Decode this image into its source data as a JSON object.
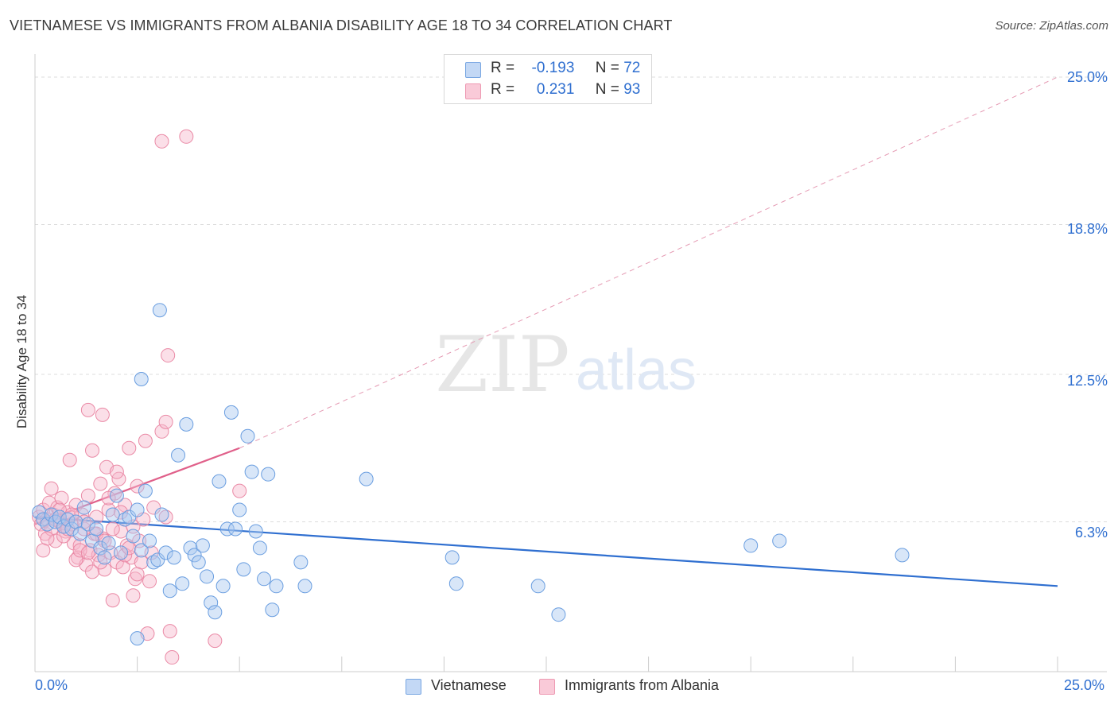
{
  "header": {
    "title": "VIETNAMESE VS IMMIGRANTS FROM ALBANIA DISABILITY AGE 18 TO 34 CORRELATION CHART",
    "source": "Source: ZipAtlas.com"
  },
  "watermark": {
    "zip": "ZIP",
    "atlas": "atlas"
  },
  "legend": {
    "r_label": "R =",
    "n_label": "N =",
    "series": [
      {
        "name": "Vietnamese",
        "r": "-0.193",
        "n": "72",
        "color": "#a9c8f0",
        "stroke": "#6a9ee0"
      },
      {
        "name": "Immigrants from Albania",
        "r": "0.231",
        "n": "93",
        "color": "#f7b9cb",
        "stroke": "#ea8aa6"
      }
    ]
  },
  "chart_data": {
    "type": "scatter",
    "title": "VIETNAMESE VS IMMIGRANTS FROM ALBANIA DISABILITY AGE 18 TO 34 CORRELATION CHART",
    "xlabel": "",
    "ylabel": "Disability Age 18 to 34",
    "xlim": [
      0,
      25
    ],
    "ylim": [
      0,
      25
    ],
    "x_tick_labels": [
      "0.0%",
      "25.0%"
    ],
    "y_tick_labels": [
      "25.0%",
      "18.8%",
      "12.5%",
      "6.3%"
    ],
    "y_tick_values": [
      25.0,
      18.8,
      12.5,
      6.3
    ],
    "series": [
      {
        "name": "Vietnamese",
        "color": "#6a9ee0",
        "trend": {
          "x": [
            0,
            25
          ],
          "y": [
            6.5,
            3.6
          ],
          "style": "solid",
          "color": "#2f6fd0"
        },
        "points": [
          [
            0.1,
            6.7
          ],
          [
            0.2,
            6.4
          ],
          [
            0.3,
            6.2
          ],
          [
            0.4,
            6.6
          ],
          [
            0.5,
            6.3
          ],
          [
            0.6,
            6.5
          ],
          [
            0.7,
            6.1
          ],
          [
            0.8,
            6.4
          ],
          [
            0.9,
            6.0
          ],
          [
            1.0,
            6.3
          ],
          [
            1.1,
            5.8
          ],
          [
            1.2,
            6.9
          ],
          [
            1.3,
            6.2
          ],
          [
            1.4,
            5.5
          ],
          [
            1.5,
            6.0
          ],
          [
            1.6,
            5.2
          ],
          [
            1.7,
            4.8
          ],
          [
            1.8,
            5.4
          ],
          [
            1.9,
            6.6
          ],
          [
            2.0,
            7.4
          ],
          [
            2.1,
            5.0
          ],
          [
            2.2,
            6.4
          ],
          [
            2.3,
            6.5
          ],
          [
            2.4,
            5.7
          ],
          [
            2.5,
            6.8
          ],
          [
            2.6,
            5.1
          ],
          [
            2.7,
            7.6
          ],
          [
            2.8,
            5.5
          ],
          [
            2.9,
            4.6
          ],
          [
            3.0,
            4.7
          ],
          [
            3.1,
            6.6
          ],
          [
            3.2,
            5.0
          ],
          [
            3.3,
            3.4
          ],
          [
            3.4,
            4.8
          ],
          [
            3.5,
            9.1
          ],
          [
            3.6,
            3.7
          ],
          [
            3.7,
            10.4
          ],
          [
            3.8,
            5.2
          ],
          [
            3.9,
            4.9
          ],
          [
            4.0,
            4.6
          ],
          [
            4.1,
            5.3
          ],
          [
            4.2,
            4.0
          ],
          [
            4.3,
            2.9
          ],
          [
            4.4,
            2.5
          ],
          [
            4.5,
            8.0
          ],
          [
            4.6,
            3.6
          ],
          [
            4.7,
            6.0
          ],
          [
            4.8,
            10.9
          ],
          [
            4.9,
            6.0
          ],
          [
            5.0,
            6.8
          ],
          [
            5.1,
            4.3
          ],
          [
            5.2,
            9.9
          ],
          [
            5.3,
            8.4
          ],
          [
            5.4,
            5.9
          ],
          [
            5.5,
            5.2
          ],
          [
            5.6,
            3.9
          ],
          [
            5.7,
            8.3
          ],
          [
            5.8,
            2.6
          ],
          [
            5.9,
            3.6
          ],
          [
            6.5,
            4.6
          ],
          [
            6.6,
            3.6
          ],
          [
            8.1,
            8.1
          ],
          [
            10.2,
            4.8
          ],
          [
            10.3,
            3.7
          ],
          [
            12.3,
            3.6
          ],
          [
            12.8,
            2.4
          ],
          [
            17.5,
            5.3
          ],
          [
            18.2,
            5.5
          ],
          [
            21.2,
            4.9
          ],
          [
            3.05,
            15.2
          ],
          [
            2.6,
            12.3
          ],
          [
            2.5,
            1.4
          ]
        ]
      },
      {
        "name": "Immigrants from Albania",
        "color": "#ea8aa6",
        "trend": {
          "x": [
            0,
            5.0
          ],
          "y": [
            6.2,
            9.4
          ],
          "style": "solid",
          "color": "#e0608a",
          "extension": {
            "x": [
              5.0,
              25
            ],
            "y": [
              9.4,
              25.0
            ],
            "style": "dashed"
          }
        },
        "points": [
          [
            0.1,
            6.5
          ],
          [
            0.15,
            6.2
          ],
          [
            0.2,
            6.8
          ],
          [
            0.25,
            5.8
          ],
          [
            0.3,
            6.4
          ],
          [
            0.35,
            7.1
          ],
          [
            0.4,
            6.0
          ],
          [
            0.45,
            6.6
          ],
          [
            0.5,
            5.5
          ],
          [
            0.55,
            6.9
          ],
          [
            0.6,
            6.3
          ],
          [
            0.65,
            7.3
          ],
          [
            0.7,
            6.1
          ],
          [
            0.75,
            5.9
          ],
          [
            0.8,
            6.7
          ],
          [
            0.85,
            8.9
          ],
          [
            0.9,
            6.2
          ],
          [
            0.95,
            5.4
          ],
          [
            1.0,
            7.0
          ],
          [
            1.05,
            4.8
          ],
          [
            1.1,
            5.3
          ],
          [
            1.15,
            6.6
          ],
          [
            1.2,
            6.0
          ],
          [
            1.25,
            4.5
          ],
          [
            1.3,
            7.4
          ],
          [
            1.35,
            5.1
          ],
          [
            1.4,
            9.3
          ],
          [
            1.45,
            5.8
          ],
          [
            1.5,
            6.5
          ],
          [
            1.55,
            4.9
          ],
          [
            1.6,
            7.9
          ],
          [
            1.65,
            5.6
          ],
          [
            1.7,
            4.3
          ],
          [
            1.75,
            8.6
          ],
          [
            1.8,
            6.8
          ],
          [
            1.85,
            5.0
          ],
          [
            1.9,
            3.0
          ],
          [
            1.95,
            7.5
          ],
          [
            2.0,
            4.6
          ],
          [
            2.05,
            8.1
          ],
          [
            2.1,
            5.9
          ],
          [
            2.15,
            4.4
          ],
          [
            2.2,
            7.0
          ],
          [
            2.25,
            5.3
          ],
          [
            2.3,
            9.4
          ],
          [
            2.35,
            4.8
          ],
          [
            2.4,
            6.1
          ],
          [
            2.45,
            3.9
          ],
          [
            2.5,
            7.8
          ],
          [
            2.55,
            5.5
          ],
          [
            2.6,
            4.6
          ],
          [
            2.65,
            6.4
          ],
          [
            2.7,
            9.7
          ],
          [
            2.75,
            1.6
          ],
          [
            2.8,
            3.8
          ],
          [
            2.85,
            5.0
          ],
          [
            2.9,
            6.9
          ],
          [
            3.1,
            10.1
          ],
          [
            3.2,
            10.5
          ],
          [
            3.25,
            13.3
          ],
          [
            3.3,
            1.7
          ],
          [
            3.35,
            0.6
          ],
          [
            3.1,
            22.3
          ],
          [
            3.7,
            22.5
          ],
          [
            0.2,
            5.1
          ],
          [
            0.3,
            5.6
          ],
          [
            0.4,
            7.7
          ],
          [
            0.5,
            6.4
          ],
          [
            0.6,
            6.8
          ],
          [
            0.7,
            5.7
          ],
          [
            0.8,
            6.0
          ],
          [
            0.9,
            6.6
          ],
          [
            1.0,
            4.7
          ],
          [
            1.1,
            5.1
          ],
          [
            1.2,
            6.3
          ],
          [
            1.3,
            5.0
          ],
          [
            1.4,
            4.2
          ],
          [
            1.5,
            5.8
          ],
          [
            1.6,
            4.6
          ],
          [
            1.7,
            5.5
          ],
          [
            1.8,
            7.3
          ],
          [
            1.9,
            6.0
          ],
          [
            2.0,
            8.4
          ],
          [
            2.1,
            6.7
          ],
          [
            2.2,
            4.9
          ],
          [
            2.3,
            5.2
          ],
          [
            2.4,
            3.2
          ],
          [
            2.5,
            4.1
          ],
          [
            1.3,
            11.0
          ],
          [
            1.65,
            10.8
          ],
          [
            5.0,
            7.6
          ],
          [
            3.2,
            6.5
          ],
          [
            4.4,
            1.3
          ]
        ]
      }
    ]
  }
}
